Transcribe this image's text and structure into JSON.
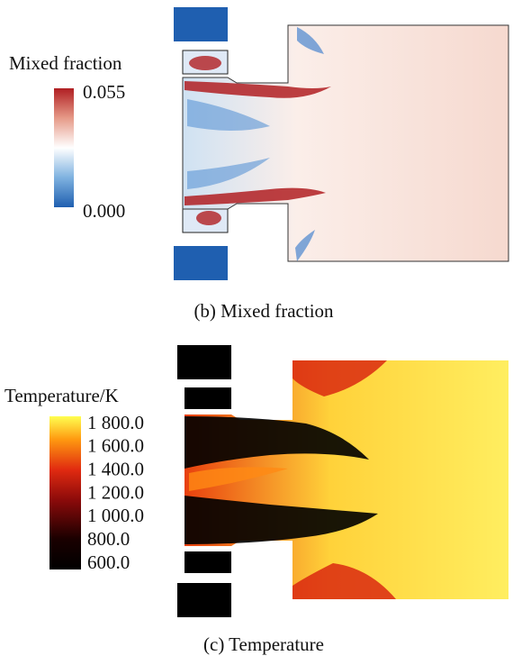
{
  "panels": [
    {
      "colorbar": {
        "title": "Mixed fraction",
        "ticks": [
          "0.055",
          "0.000"
        ]
      },
      "caption": "(b) Mixed fraction"
    },
    {
      "colorbar": {
        "title": "Temperature/K",
        "ticks": [
          "1 800.0",
          "1 600.0",
          "1 400.0",
          "1 200.0",
          "1 000.0",
          "800.0",
          "600.0"
        ]
      },
      "caption": "(c) Temperature"
    }
  ]
}
